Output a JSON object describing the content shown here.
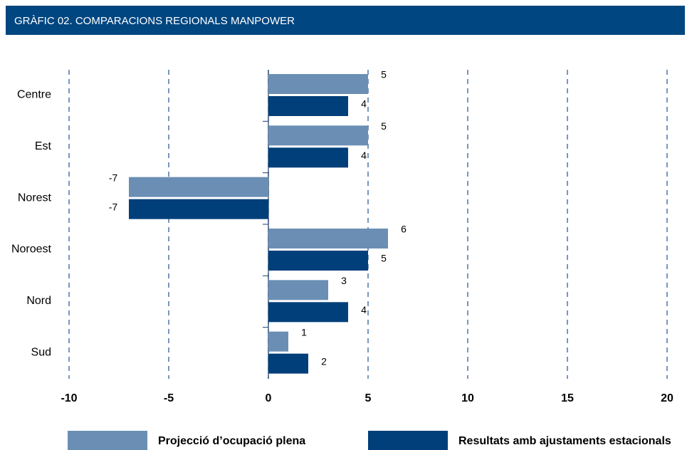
{
  "chart_data": {
    "type": "hbar",
    "title": "GRÀFIC 02. COMPARACIONS REGIONALS MANPOWER",
    "categories": [
      "Centre",
      "Est",
      "Norest",
      "Noroest",
      "Nord",
      "Sud"
    ],
    "series": [
      {
        "name": "Projecció d’ocupació plena",
        "color": "#6b8fb4",
        "values": [
          5,
          5,
          -7,
          6,
          3,
          1
        ]
      },
      {
        "name": "Resultats amb ajustaments estacionals",
        "color": "#003f7a",
        "values": [
          4,
          4,
          -7,
          5,
          4,
          2
        ]
      }
    ],
    "xlim": [
      -10,
      20
    ],
    "xticks": [
      -10,
      -5,
      0,
      5,
      10,
      15,
      20
    ],
    "grid": true
  }
}
